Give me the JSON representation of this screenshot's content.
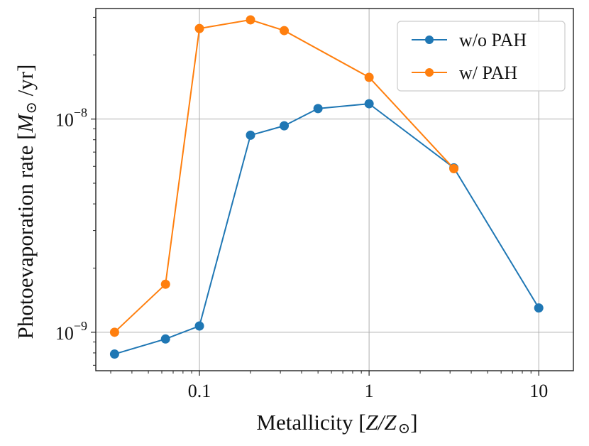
{
  "chart_data": {
    "type": "line",
    "xscale": "log",
    "yscale": "log",
    "xlim": [
      0.0245,
      16.0
    ],
    "ylim": [
      6.6e-10,
      3.3e-08
    ],
    "xlabel": "Metallicity [Z/Z⊙]",
    "xlabel_parts": {
      "prefix": "Metallicity [",
      "math": "Z/Z",
      "sun": "⊙",
      "suffix": "]"
    },
    "ylabel": "Photoevaporation rate [M⊙/yr]",
    "ylabel_parts": {
      "prefix": "Photoevaporation rate [",
      "math": "M",
      "sun": "⊙",
      "suffix": " /yr]"
    },
    "grid": true,
    "xticks": [
      {
        "value": 0.1,
        "label": "0.1"
      },
      {
        "value": 1,
        "label": "1"
      },
      {
        "value": 10,
        "label": "10"
      }
    ],
    "yticks": [
      {
        "value": 1e-09,
        "base": "10",
        "exp": "−9"
      },
      {
        "value": 1e-08,
        "base": "10",
        "exp": "−8"
      }
    ],
    "legend_position": "top-right",
    "series": [
      {
        "name": "w/o PAH",
        "color": "#1f77b4",
        "x": [
          0.0316,
          0.0631,
          0.1,
          0.2,
          0.316,
          0.5,
          1.0,
          3.16,
          10.0
        ],
        "y": [
          7.9e-10,
          9.3e-10,
          1.07e-09,
          8.4e-09,
          9.3e-09,
          1.12e-08,
          1.18e-08,
          5.9e-09,
          1.3e-09
        ]
      },
      {
        "name": "w/ PAH",
        "color": "#ff7f0e",
        "x": [
          0.0316,
          0.0631,
          0.1,
          0.2,
          0.316,
          1.0,
          3.16
        ],
        "y": [
          1e-09,
          1.68e-09,
          2.66e-08,
          2.92e-08,
          2.6e-08,
          1.57e-08,
          5.85e-09
        ]
      }
    ]
  }
}
